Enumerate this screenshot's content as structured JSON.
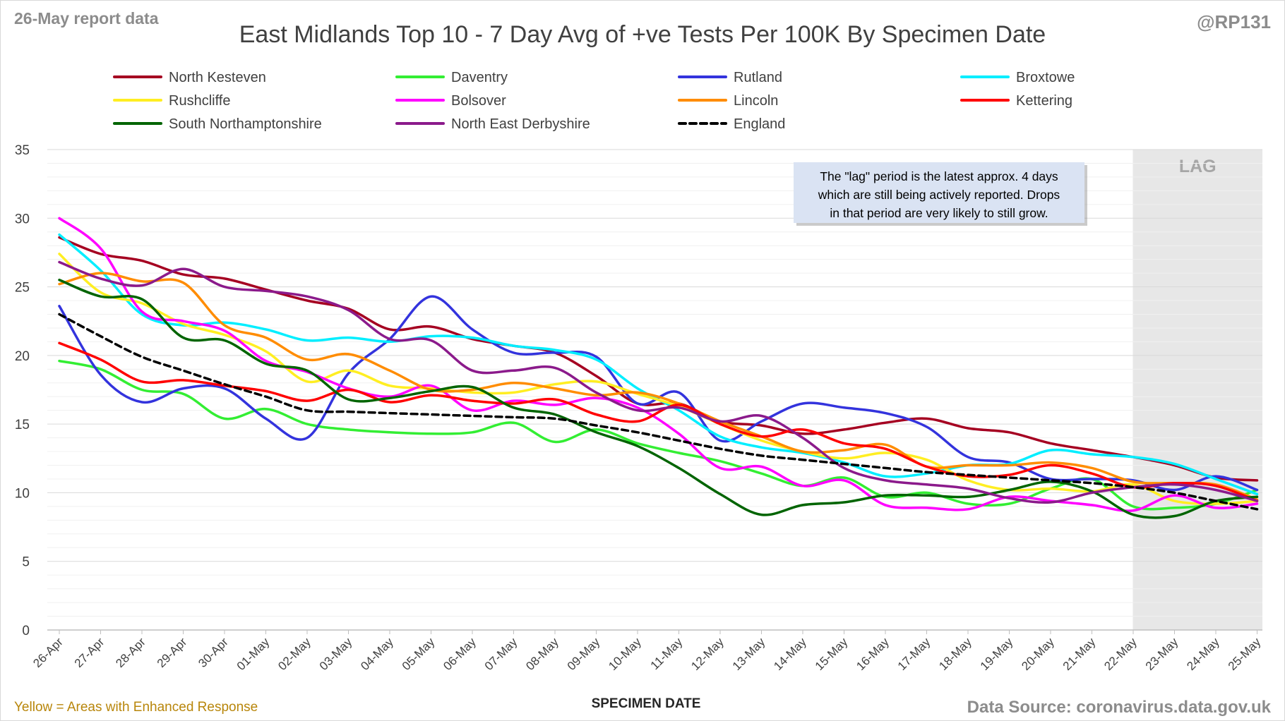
{
  "header": {
    "report_note": "26-May report data",
    "handle": "@RP131"
  },
  "footer": {
    "note": "Yellow = Areas with Enhanced Response",
    "source": "Data Source: coronavirus.data.gov.uk"
  },
  "annotation": {
    "lines": [
      "The \"lag\" period is the latest approx. 4 days",
      "which are still being actively reported.  Drops",
      "in that period are very likely to still grow."
    ]
  },
  "lag_region": {
    "label": "LAG",
    "start": "22-May",
    "end": "25-May"
  },
  "colors": {
    "gridline": "#d9d9d9",
    "lag_fill": "#e7e7e7",
    "annotation_fill": "#dae3f3",
    "footer_note": "#b8860b",
    "source_text": "#8c8c8c",
    "header_text": "#8c8c8c"
  },
  "chart_data": {
    "type": "line",
    "title": "East Midlands Top 10 - 7 Day Avg of +ve Tests Per 100K By Specimen Date",
    "xlabel": "SPECIMEN DATE",
    "ylabel": "",
    "ylim": [
      0,
      35
    ],
    "yticks": [
      0,
      5,
      10,
      15,
      20,
      25,
      30,
      35
    ],
    "grid": true,
    "legend_position": "top",
    "categories": [
      "26-Apr",
      "27-Apr",
      "28-Apr",
      "29-Apr",
      "30-Apr",
      "01-May",
      "02-May",
      "03-May",
      "04-May",
      "05-May",
      "06-May",
      "07-May",
      "08-May",
      "09-May",
      "10-May",
      "11-May",
      "12-May",
      "13-May",
      "14-May",
      "15-May",
      "16-May",
      "17-May",
      "18-May",
      "19-May",
      "20-May",
      "21-May",
      "22-May",
      "23-May",
      "24-May",
      "25-May"
    ],
    "series": [
      {
        "name": "North Kesteven",
        "color": "#a50021",
        "dash": false,
        "values": [
          28.6,
          27.4,
          26.9,
          25.9,
          25.6,
          24.8,
          24.0,
          23.4,
          21.9,
          22.1,
          21.2,
          20.7,
          20.2,
          18.5,
          16.5,
          16.5,
          15.2,
          14.9,
          14.3,
          14.6,
          15.1,
          15.4,
          14.7,
          14.4,
          13.6,
          13.1,
          12.6,
          12.0,
          11.1,
          10.9
        ]
      },
      {
        "name": "Daventry",
        "color": "#33ee33",
        "dash": false,
        "values": [
          19.6,
          19.0,
          17.5,
          17.2,
          15.4,
          16.1,
          15.0,
          14.6,
          14.4,
          14.3,
          14.4,
          15.1,
          13.7,
          14.6,
          13.6,
          12.9,
          12.3,
          11.4,
          10.5,
          11.1,
          9.7,
          10.0,
          9.2,
          9.2,
          10.3,
          11.0,
          9.0,
          8.9,
          9.2,
          10.2
        ]
      },
      {
        "name": "Rutland",
        "color": "#3333dd",
        "dash": false,
        "values": [
          23.6,
          18.6,
          16.6,
          17.6,
          17.6,
          15.4,
          14.0,
          18.7,
          21.2,
          24.3,
          21.9,
          20.2,
          20.2,
          19.9,
          16.5,
          17.3,
          13.8,
          15.2,
          16.5,
          16.2,
          15.8,
          14.8,
          12.6,
          12.2,
          11.0,
          11.0,
          10.9,
          10.2,
          11.2,
          10.2
        ]
      },
      {
        "name": "Broxtowe",
        "color": "#00eeff",
        "dash": false,
        "values": [
          28.8,
          26.2,
          23.0,
          22.2,
          22.4,
          21.9,
          21.1,
          21.3,
          21.0,
          21.4,
          21.3,
          20.7,
          20.4,
          19.7,
          17.6,
          16.0,
          14.1,
          13.3,
          12.9,
          12.2,
          11.2,
          11.4,
          12.0,
          12.1,
          13.1,
          12.8,
          12.6,
          12.1,
          11.0,
          9.9
        ]
      },
      {
        "name": "Rushcliffe",
        "color": "#ffee22",
        "dash": false,
        "values": [
          27.4,
          24.6,
          23.8,
          22.3,
          21.5,
          20.3,
          18.1,
          18.9,
          17.8,
          17.6,
          17.3,
          17.3,
          17.9,
          18.1,
          17.2,
          16.3,
          15.0,
          13.8,
          13.0,
          12.5,
          12.9,
          12.4,
          10.9,
          10.2,
          10.3,
          10.1,
          10.6,
          9.4,
          9.2,
          9.4
        ]
      },
      {
        "name": "Bolsover",
        "color": "#ff00ff",
        "dash": false,
        "values": [
          30.0,
          27.8,
          23.2,
          22.5,
          21.8,
          19.6,
          18.8,
          17.6,
          17.0,
          17.8,
          16.0,
          16.7,
          16.4,
          16.9,
          16.2,
          14.3,
          11.8,
          11.9,
          10.5,
          10.9,
          9.1,
          8.9,
          8.8,
          9.7,
          9.4,
          9.1,
          8.7,
          9.8,
          8.9,
          9.2
        ]
      },
      {
        "name": "Lincoln",
        "color": "#ff8c00",
        "dash": false,
        "values": [
          25.2,
          26.0,
          25.4,
          25.3,
          22.2,
          21.3,
          19.7,
          20.1,
          18.9,
          17.5,
          17.5,
          18.0,
          17.6,
          17.1,
          17.3,
          16.5,
          15.2,
          14.1,
          13.0,
          13.1,
          13.5,
          11.9,
          12.0,
          12.0,
          12.2,
          11.8,
          10.8,
          10.7,
          10.6,
          9.5
        ]
      },
      {
        "name": "Kettering",
        "color": "#ff0000",
        "dash": false,
        "values": [
          20.9,
          19.7,
          18.1,
          18.2,
          17.8,
          17.4,
          16.7,
          17.5,
          16.6,
          17.1,
          16.7,
          16.5,
          16.8,
          15.7,
          15.2,
          16.4,
          15.0,
          14.1,
          14.6,
          13.6,
          13.2,
          11.9,
          11.2,
          11.3,
          12.0,
          11.4,
          10.4,
          10.7,
          10.5,
          9.4
        ]
      },
      {
        "name": "South Northamptonshire",
        "color": "#006400",
        "dash": false,
        "values": [
          25.5,
          24.3,
          24.1,
          21.3,
          21.1,
          19.4,
          18.9,
          16.8,
          16.9,
          17.4,
          17.7,
          16.2,
          15.7,
          14.4,
          13.4,
          11.8,
          9.9,
          8.4,
          9.1,
          9.3,
          9.8,
          9.8,
          9.7,
          10.2,
          10.8,
          10.1,
          8.4,
          8.3,
          9.4,
          9.7
        ]
      },
      {
        "name": "North East Derbyshire",
        "color": "#8b1a8b",
        "dash": false,
        "values": [
          26.8,
          25.6,
          25.1,
          26.3,
          25.0,
          24.7,
          24.3,
          23.3,
          21.2,
          21.1,
          18.9,
          18.9,
          19.1,
          17.3,
          16.0,
          16.2,
          15.2,
          15.6,
          14.0,
          11.8,
          10.9,
          10.6,
          10.3,
          9.6,
          9.3,
          10.0,
          10.4,
          10.6,
          10.2,
          9.4
        ]
      },
      {
        "name": "England",
        "color": "#000000",
        "dash": true,
        "values": [
          23.0,
          21.4,
          19.9,
          18.9,
          17.9,
          17.0,
          16.0,
          15.9,
          15.8,
          15.7,
          15.6,
          15.5,
          15.4,
          14.9,
          14.4,
          13.8,
          13.2,
          12.7,
          12.4,
          12.1,
          11.8,
          11.5,
          11.3,
          11.1,
          10.9,
          10.7,
          10.4,
          10.0,
          9.4,
          8.8
        ]
      }
    ]
  }
}
